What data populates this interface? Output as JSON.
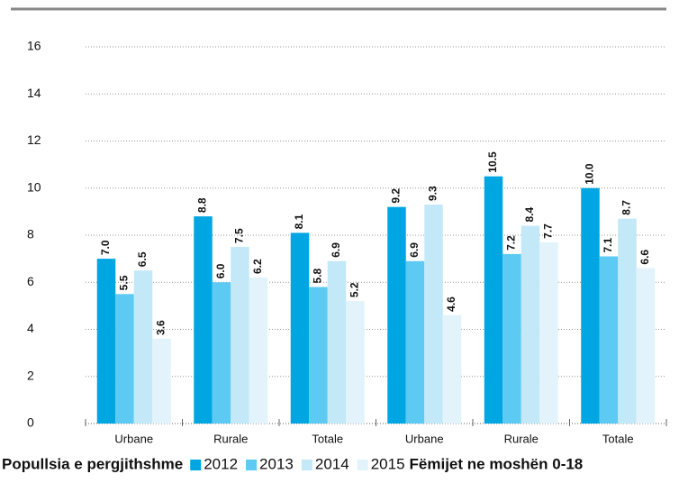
{
  "chart_data": {
    "type": "bar",
    "groups": [
      "Popullsia e pergjithshme",
      "Fëmijet ne moshën 0-18"
    ],
    "categories": [
      "Urbane",
      "Rurale",
      "Totale",
      "Urbane",
      "Rurale",
      "Totale"
    ],
    "series": [
      {
        "name": "2012",
        "color": "#00a6e2",
        "values": [
          7.0,
          8.8,
          8.1,
          9.2,
          10.5,
          10.0
        ],
        "value_labels": [
          "7.0",
          "8.8",
          "8.1",
          "9.2",
          "10.5",
          "10.0"
        ]
      },
      {
        "name": "2013",
        "color": "#5ccaf2",
        "values": [
          5.5,
          6.0,
          5.8,
          6.9,
          7.2,
          7.1
        ],
        "value_labels": [
          "5.5",
          "6.0",
          "5.8",
          "6.9",
          "7.2",
          "7.1"
        ]
      },
      {
        "name": "2014",
        "color": "#c3e8f8",
        "values": [
          6.5,
          7.5,
          6.9,
          9.3,
          8.4,
          8.7
        ],
        "value_labels": [
          "6.5",
          "7.5",
          "6.9",
          "9.3",
          "8.4",
          "8.7"
        ]
      },
      {
        "name": "2015",
        "color": "#e2f3fb",
        "values": [
          3.6,
          6.2,
          5.2,
          4.6,
          7.7,
          6.6
        ],
        "value_labels": [
          "3.6",
          "6.2",
          "5.2",
          "4.6",
          "7.7",
          "6.6"
        ]
      }
    ],
    "ylim": [
      0,
      16
    ],
    "yticks": [
      0,
      2,
      4,
      6,
      8,
      10,
      12,
      14,
      16
    ],
    "grid": true
  }
}
